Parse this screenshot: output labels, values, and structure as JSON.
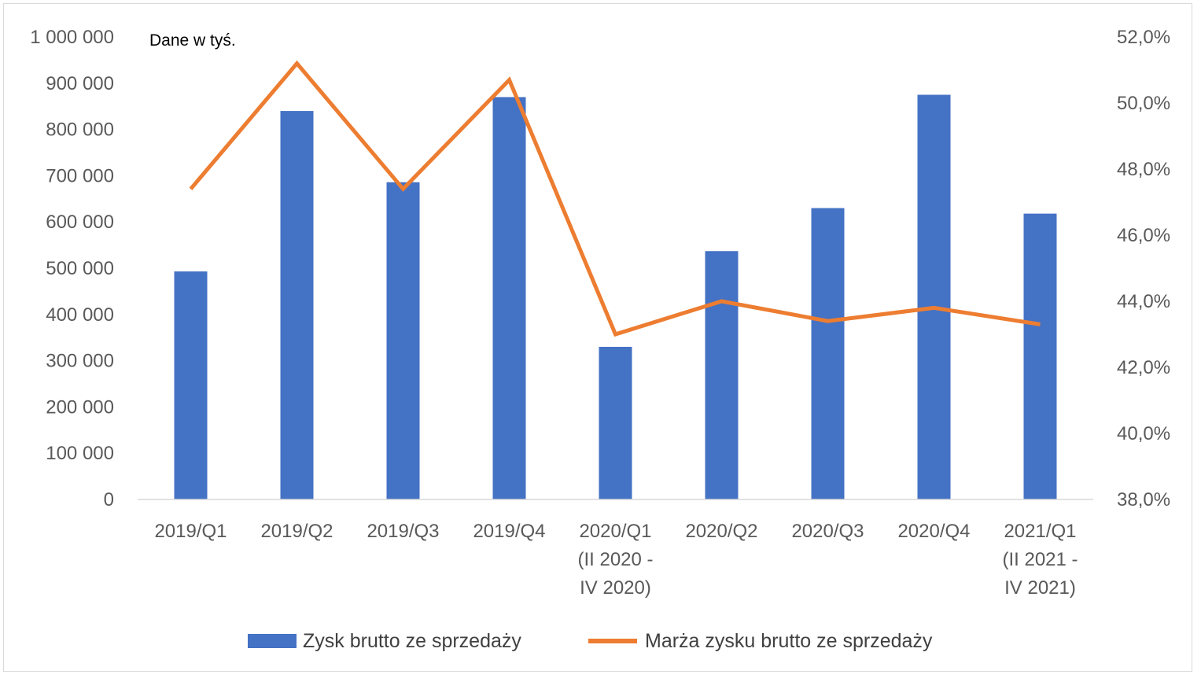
{
  "note": "Dane w tyś.",
  "colors": {
    "bars": "#4472c4",
    "line": "#ed7d31",
    "axis": "#d9d9d9",
    "text": "#595959"
  },
  "chart_data": {
    "type": "bar",
    "categories": [
      [
        "2019/Q1"
      ],
      [
        "2019/Q2"
      ],
      [
        "2019/Q3"
      ],
      [
        "2019/Q4"
      ],
      [
        "2020/Q1",
        "(II 2020 -",
        "IV 2020)"
      ],
      [
        "2020/Q2"
      ],
      [
        "2020/Q3"
      ],
      [
        "2020/Q4"
      ],
      [
        "2021/Q1",
        "(II 2021 -",
        "IV 2021)"
      ]
    ],
    "series": [
      {
        "name": "Zysk brutto ze sprzedaży",
        "type": "bar",
        "axis": "left",
        "values": [
          493000,
          840000,
          686000,
          870000,
          330000,
          537000,
          630000,
          875000,
          618000
        ]
      },
      {
        "name": "Marża zysku brutto ze sprzedaży",
        "type": "line",
        "axis": "right",
        "values": [
          47.4,
          51.2,
          47.4,
          50.7,
          43.0,
          44.0,
          43.4,
          43.8,
          43.3
        ]
      }
    ],
    "y_left": {
      "min": 0,
      "max": 1000000,
      "step": 100000,
      "ticks": [
        "0",
        "100 000",
        "200 000",
        "300 000",
        "400 000",
        "500 000",
        "600 000",
        "700 000",
        "800 000",
        "900 000",
        "1 000 000"
      ]
    },
    "y_right": {
      "min": 38,
      "max": 52,
      "step": 2,
      "ticks": [
        "38,0%",
        "40,0%",
        "42,0%",
        "44,0%",
        "46,0%",
        "48,0%",
        "50,0%",
        "52,0%"
      ]
    },
    "grid": false,
    "legend": "bottom"
  }
}
